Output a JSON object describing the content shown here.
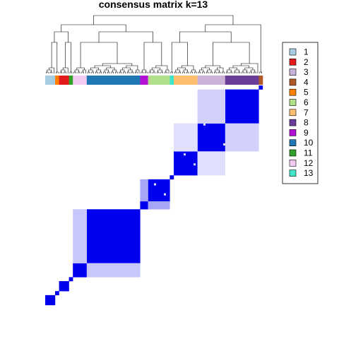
{
  "chart_data": {
    "type": "heatmap",
    "title": "consensus matrix k=13",
    "legend": {
      "placement": "right",
      "entries": [
        {
          "label": "1",
          "color": "#A6CEE3"
        },
        {
          "label": "2",
          "color": "#E31A1C"
        },
        {
          "label": "3",
          "color": "#CAB2D6"
        },
        {
          "label": "4",
          "color": "#B15928"
        },
        {
          "label": "5",
          "color": "#FF7F00"
        },
        {
          "label": "6",
          "color": "#B2DF8A"
        },
        {
          "label": "7",
          "color": "#FDBF6F"
        },
        {
          "label": "8",
          "color": "#6A3D9A"
        },
        {
          "label": "9",
          "color": "#B312D6"
        },
        {
          "label": "10",
          "color": "#1F78B4"
        },
        {
          "label": "11",
          "color": "#33A02C"
        },
        {
          "label": "12",
          "color": "#F2CCF0"
        },
        {
          "label": "13",
          "color": "#3FE5C8"
        }
      ]
    },
    "class_bar": [
      {
        "cluster": "1",
        "n": 5
      },
      {
        "cluster": "5",
        "n": 2
      },
      {
        "cluster": "2",
        "n": 5
      },
      {
        "cluster": "11",
        "n": 2
      },
      {
        "cluster": "12",
        "n": 7
      },
      {
        "cluster": "10",
        "n": 27
      },
      {
        "cluster": "9",
        "n": 4
      },
      {
        "cluster": "6",
        "n": 11
      },
      {
        "cluster": "13",
        "n": 2
      },
      {
        "cluster": "7",
        "n": 12
      },
      {
        "cluster": "3",
        "n": 14
      },
      {
        "cluster": "8",
        "n": 17
      },
      {
        "cluster": "4",
        "n": 2
      }
    ],
    "value_range": [
      0,
      1
    ],
    "color_low": "#FFFFFF",
    "color_high": "#0000EE"
  }
}
